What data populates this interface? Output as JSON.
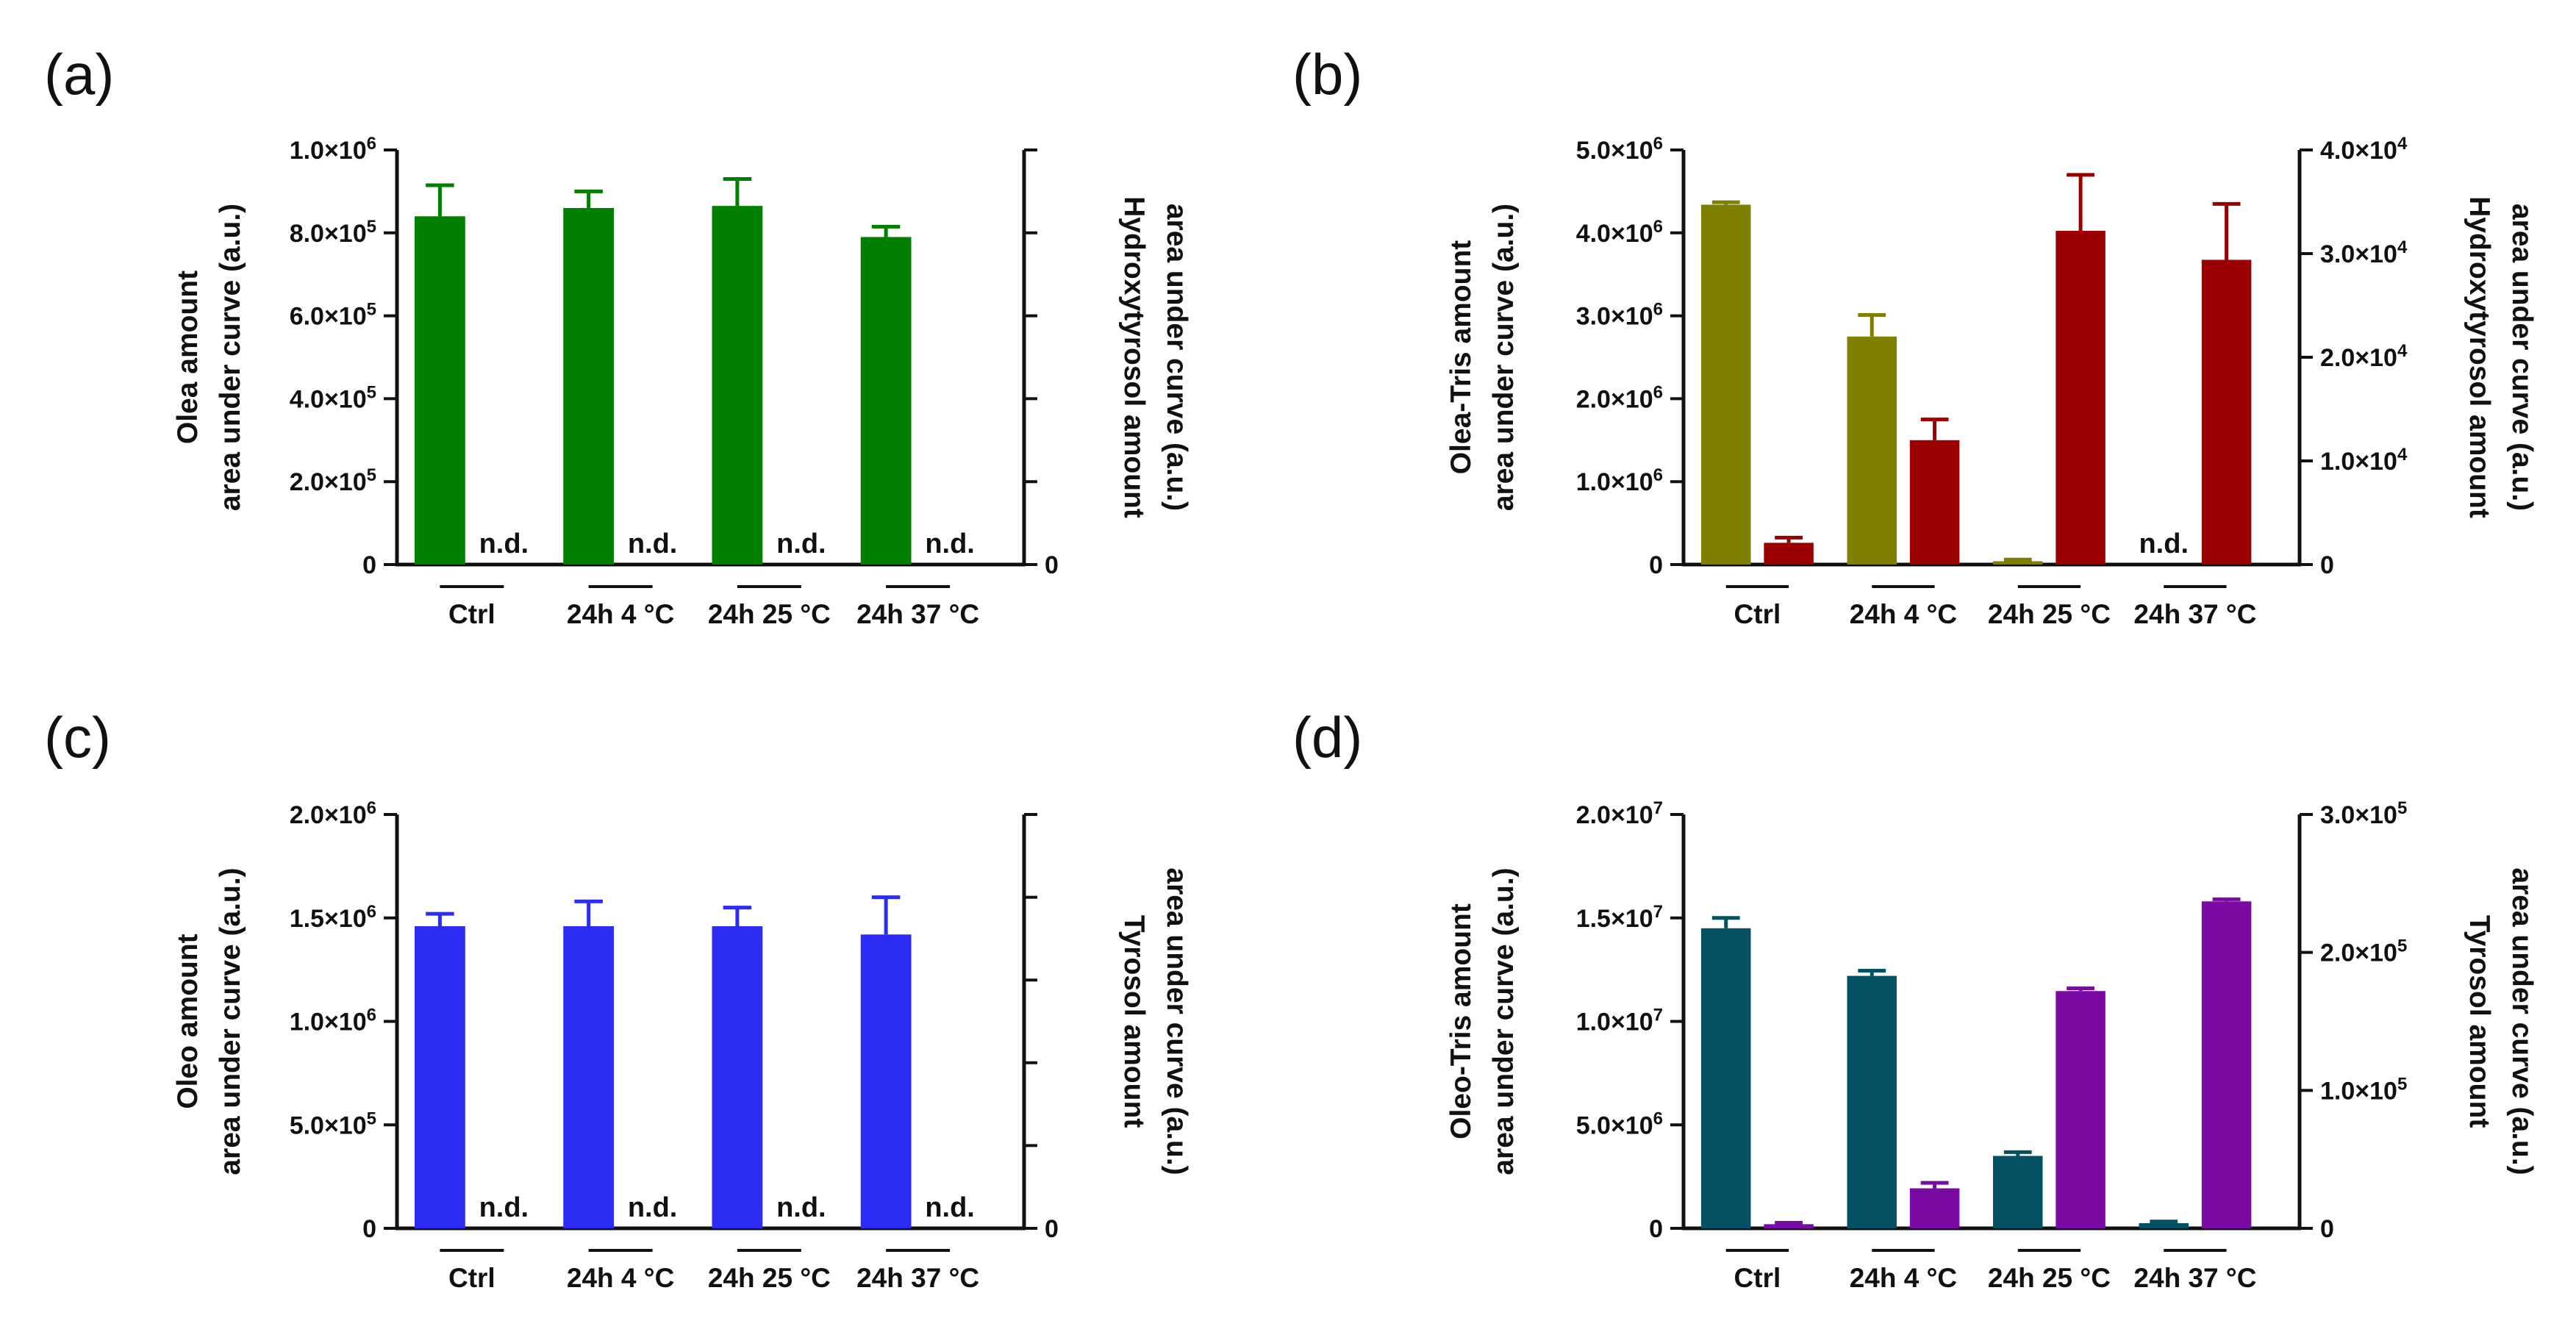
{
  "chart_data": [
    {
      "type": "bar",
      "panel_label": "(a)",
      "categories": [
        "Ctrl",
        "24h 4 °C",
        "24h 25 °C",
        "24h 37 °C"
      ],
      "left_axis": {
        "title_lines": [
          "Olea amount",
          "area under curve (a.u.)"
        ],
        "ylim": [
          0,
          1000000
        ],
        "ticks": [
          {
            "value": 0,
            "label": "0"
          },
          {
            "value": 200000,
            "label": "2.0×10",
            "exp": "5"
          },
          {
            "value": 400000,
            "label": "4.0×10",
            "exp": "5"
          },
          {
            "value": 600000,
            "label": "6.0×10",
            "exp": "5"
          },
          {
            "value": 800000,
            "label": "8.0×10",
            "exp": "5"
          },
          {
            "value": 1000000,
            "label": "1.0×10",
            "exp": "6"
          }
        ]
      },
      "right_axis": {
        "title_lines": [
          "Hydroxytyrosol amount",
          "area under curve (a.u.)"
        ],
        "ylim": [
          0,
          1
        ],
        "ticks": [
          {
            "value": 0,
            "label": "0"
          },
          {
            "value": 0.2,
            "label": ""
          },
          {
            "value": 0.4,
            "label": ""
          },
          {
            "value": 0.6,
            "label": ""
          },
          {
            "value": 0.8,
            "label": ""
          },
          {
            "value": 1.0,
            "label": ""
          }
        ]
      },
      "series": [
        {
          "name": "Olea",
          "axis": "left",
          "color": "#007f00",
          "values": [
            840000,
            860000,
            865000,
            790000
          ],
          "errors": [
            75000,
            40000,
            65000,
            25000
          ]
        },
        {
          "name": "Hydroxytyrosol",
          "axis": "right",
          "color": "#9a0000",
          "values": [
            null,
            null,
            null,
            null
          ],
          "errors": [
            null,
            null,
            null,
            null
          ],
          "annotations": [
            "n.d.",
            "n.d.",
            "n.d.",
            "n.d."
          ]
        }
      ]
    },
    {
      "type": "bar",
      "panel_label": "(b)",
      "categories": [
        "Ctrl",
        "24h 4 °C",
        "24h 25 °C",
        "24h 37 °C"
      ],
      "left_axis": {
        "title_lines": [
          "Olea-Tris amount",
          "area under curve (a.u.)"
        ],
        "ylim": [
          0,
          5000000
        ],
        "ticks": [
          {
            "value": 0,
            "label": "0"
          },
          {
            "value": 1000000,
            "label": "1.0×10",
            "exp": "6"
          },
          {
            "value": 2000000,
            "label": "2.0×10",
            "exp": "6"
          },
          {
            "value": 3000000,
            "label": "3.0×10",
            "exp": "6"
          },
          {
            "value": 4000000,
            "label": "4.0×10",
            "exp": "6"
          },
          {
            "value": 5000000,
            "label": "5.0×10",
            "exp": "6"
          }
        ]
      },
      "right_axis": {
        "title_lines": [
          "Hydroxytyrosol amount",
          "area under curve (a.u.)"
        ],
        "ylim": [
          0,
          40000
        ],
        "ticks": [
          {
            "value": 0,
            "label": "0"
          },
          {
            "value": 10000,
            "label": "1.0×10",
            "exp": "4"
          },
          {
            "value": 20000,
            "label": "2.0×10",
            "exp": "4"
          },
          {
            "value": 30000,
            "label": "3.0×10",
            "exp": "4"
          },
          {
            "value": 40000,
            "label": "4.0×10",
            "exp": "4"
          }
        ]
      },
      "series": [
        {
          "name": "Olea-Tris",
          "axis": "left",
          "color": "#7f7f00",
          "values": [
            4340000,
            2750000,
            40000,
            null
          ],
          "errors": [
            30000,
            260000,
            20000,
            null
          ],
          "annotations": [
            null,
            null,
            null,
            "n.d."
          ]
        },
        {
          "name": "Hydroxytyrosol",
          "axis": "right",
          "color": "#9a0000",
          "values": [
            2100,
            12000,
            32200,
            29400
          ],
          "errors": [
            500,
            2000,
            5400,
            5400
          ]
        }
      ]
    },
    {
      "type": "bar",
      "panel_label": "(c)",
      "categories": [
        "Ctrl",
        "24h 4 °C",
        "24h 25 °C",
        "24h 37 °C"
      ],
      "left_axis": {
        "title_lines": [
          "Oleo amount",
          "area under curve (a.u.)"
        ],
        "ylim": [
          0,
          2000000
        ],
        "ticks": [
          {
            "value": 0,
            "label": "0"
          },
          {
            "value": 500000,
            "label": "5.0×10",
            "exp": "5"
          },
          {
            "value": 1000000,
            "label": "1.0×10",
            "exp": "6"
          },
          {
            "value": 1500000,
            "label": "1.5×10",
            "exp": "6"
          },
          {
            "value": 2000000,
            "label": "2.0×10",
            "exp": "6"
          }
        ]
      },
      "right_axis": {
        "title_lines": [
          "Tyrosol amount",
          "area under curve (a.u.)"
        ],
        "ylim": [
          0,
          1
        ],
        "ticks": [
          {
            "value": 0,
            "label": "0"
          },
          {
            "value": 0.2,
            "label": ""
          },
          {
            "value": 0.4,
            "label": ""
          },
          {
            "value": 0.6,
            "label": ""
          },
          {
            "value": 0.8,
            "label": ""
          },
          {
            "value": 1.0,
            "label": ""
          }
        ]
      },
      "series": [
        {
          "name": "Oleo",
          "axis": "left",
          "color": "#2c2cf4",
          "values": [
            1460000,
            1460000,
            1460000,
            1420000
          ],
          "errors": [
            60000,
            120000,
            90000,
            180000
          ]
        },
        {
          "name": "Tyrosol",
          "axis": "right",
          "color": "#7a0aa3",
          "values": [
            null,
            null,
            null,
            null
          ],
          "errors": [
            null,
            null,
            null,
            null
          ],
          "annotations": [
            "n.d.",
            "n.d.",
            "n.d.",
            "n.d."
          ]
        }
      ]
    },
    {
      "type": "bar",
      "panel_label": "(d)",
      "categories": [
        "Ctrl",
        "24h 4 °C",
        "24h 25 °C",
        "24h 37 °C"
      ],
      "left_axis": {
        "title_lines": [
          "Oleo-Tris amount",
          "area under curve (a.u.)"
        ],
        "ylim": [
          0,
          20000000
        ],
        "ticks": [
          {
            "value": 0,
            "label": "0"
          },
          {
            "value": 5000000,
            "label": "5.0×10",
            "exp": "6"
          },
          {
            "value": 10000000,
            "label": "1.0×10",
            "exp": "7"
          },
          {
            "value": 15000000,
            "label": "1.5×10",
            "exp": "7"
          },
          {
            "value": 20000000,
            "label": "2.0×10",
            "exp": "7"
          }
        ]
      },
      "right_axis": {
        "title_lines": [
          "Tyrosol amount",
          "area under curve (a.u.)"
        ],
        "ylim": [
          0,
          300000
        ],
        "ticks": [
          {
            "value": 0,
            "label": "0"
          },
          {
            "value": 100000,
            "label": "1.0×10",
            "exp": "5"
          },
          {
            "value": 200000,
            "label": "2.0×10",
            "exp": "5"
          },
          {
            "value": 300000,
            "label": "3.0×10",
            "exp": "5"
          }
        ]
      },
      "series": [
        {
          "name": "Oleo-Tris",
          "axis": "left",
          "color": "#045163",
          "values": [
            14500000,
            12200000,
            3500000,
            250000
          ],
          "errors": [
            500000,
            250000,
            180000,
            80000
          ]
        },
        {
          "name": "Tyrosol",
          "axis": "right",
          "color": "#7a0aa3",
          "values": [
            3000,
            29000,
            172000,
            237000
          ],
          "errors": [
            1000,
            4000,
            2000,
            1500
          ]
        }
      ]
    }
  ]
}
